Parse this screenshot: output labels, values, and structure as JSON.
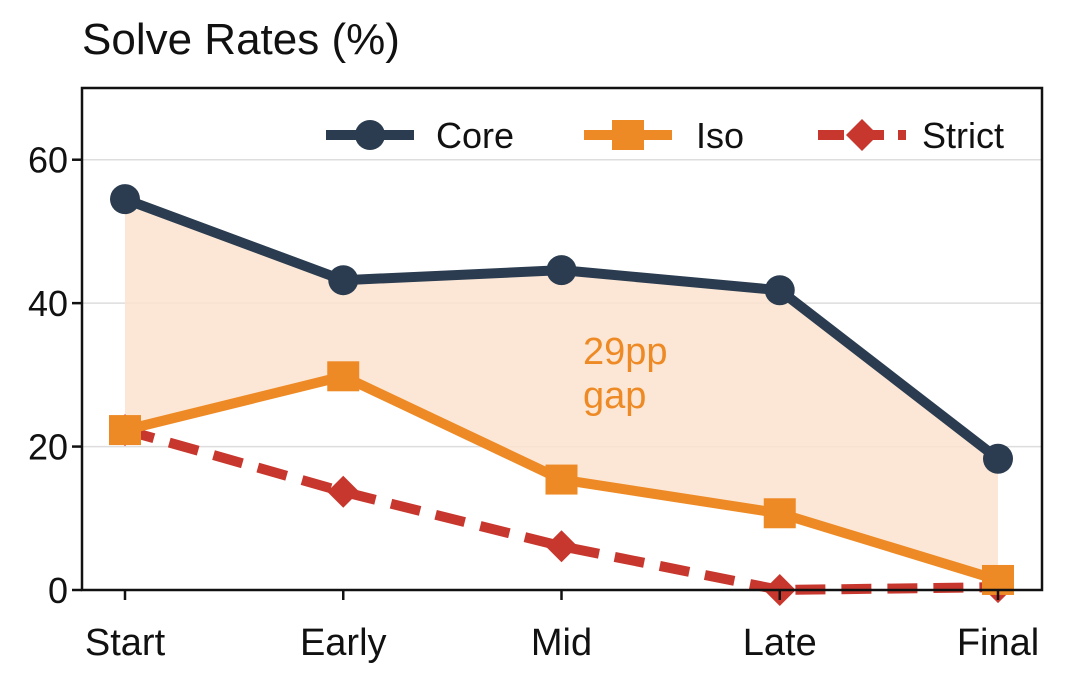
{
  "chart_data": {
    "type": "line",
    "title": "Solve Rates (%)",
    "xlabel": "",
    "ylabel": "",
    "categories": [
      "Start",
      "Early",
      "Mid",
      "Late",
      "Final"
    ],
    "ylim": [
      0,
      70
    ],
    "yticks": [
      0,
      20,
      40,
      60
    ],
    "ytick_labels": [
      "0",
      "20",
      "40",
      "60"
    ],
    "grid": true,
    "legend_position": "top-right",
    "series": [
      {
        "name": "Core",
        "values": [
          54.5,
          43.2,
          44.6,
          41.8,
          18.3
        ],
        "color": "#2b3c50",
        "marker": "circle",
        "linestyle": "solid"
      },
      {
        "name": "Iso",
        "values": [
          22.3,
          29.8,
          15.4,
          10.7,
          1.4
        ],
        "color": "#ee8a25",
        "marker": "square",
        "linestyle": "solid"
      },
      {
        "name": "Strict",
        "values": [
          22.3,
          13.7,
          6.1,
          0.0,
          0.4
        ],
        "color": "#c8372d",
        "marker": "diamond",
        "linestyle": "dashed"
      }
    ],
    "shaded_region": {
      "between": [
        "Core",
        "Iso"
      ],
      "color": "#fbe3cf"
    },
    "annotations": [
      {
        "lines": [
          "29pp",
          "gap"
        ],
        "color": "#ee8a25"
      }
    ]
  }
}
